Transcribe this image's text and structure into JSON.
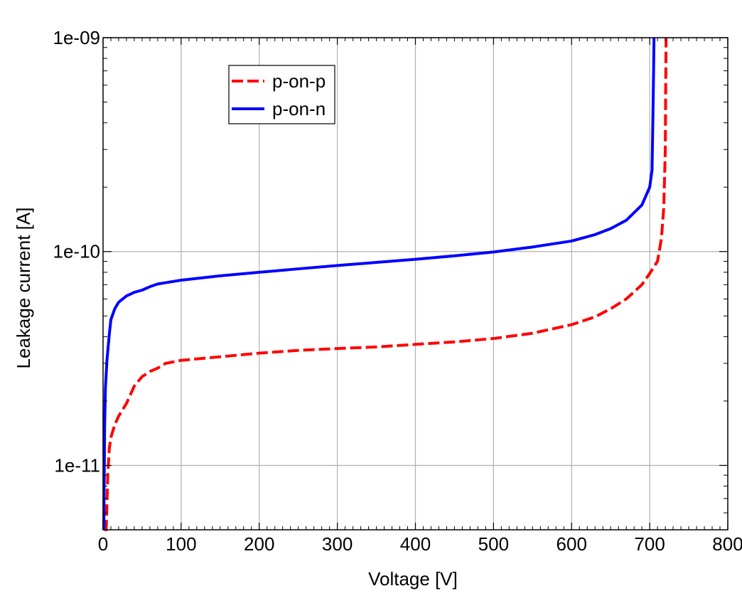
{
  "chart_data": {
    "type": "line",
    "xlabel": "Voltage [V]",
    "ylabel": "Leakage current [A]",
    "xlim": [
      0,
      800
    ],
    "ylim": [
      5e-12,
      1e-09
    ],
    "yscale": "log",
    "grid": true,
    "legend_position": "top-left",
    "x_ticks": [
      {
        "value": 0,
        "label": "0"
      },
      {
        "value": 100,
        "label": "100"
      },
      {
        "value": 200,
        "label": "200"
      },
      {
        "value": 300,
        "label": "300"
      },
      {
        "value": 400,
        "label": "400"
      },
      {
        "value": 500,
        "label": "500"
      },
      {
        "value": 600,
        "label": "600"
      },
      {
        "value": 700,
        "label": "700"
      },
      {
        "value": 800,
        "label": "800"
      }
    ],
    "y_ticks": [
      {
        "value": 1e-11,
        "label": "1e-11"
      },
      {
        "value": 1e-10,
        "label": "1e-10"
      },
      {
        "value": 1e-09,
        "label": "1e-09"
      }
    ],
    "series": [
      {
        "name": "p-on-p",
        "color": "#ff0000",
        "dash": "dashed",
        "points": [
          [
            2,
            5e-12
          ],
          [
            4,
            5e-12
          ],
          [
            5,
            6.5e-12
          ],
          [
            6,
            9e-12
          ],
          [
            8,
            1.2e-11
          ],
          [
            10,
            1.35e-11
          ],
          [
            15,
            1.55e-11
          ],
          [
            20,
            1.7e-11
          ],
          [
            30,
            1.95e-11
          ],
          [
            40,
            2.35e-11
          ],
          [
            50,
            2.6e-11
          ],
          [
            60,
            2.75e-11
          ],
          [
            70,
            2.85e-11
          ],
          [
            80,
            3e-11
          ],
          [
            100,
            3.1e-11
          ],
          [
            150,
            3.22e-11
          ],
          [
            200,
            3.35e-11
          ],
          [
            250,
            3.45e-11
          ],
          [
            300,
            3.52e-11
          ],
          [
            350,
            3.58e-11
          ],
          [
            400,
            3.68e-11
          ],
          [
            450,
            3.78e-11
          ],
          [
            500,
            3.92e-11
          ],
          [
            550,
            4.15e-11
          ],
          [
            600,
            4.55e-11
          ],
          [
            630,
            4.95e-11
          ],
          [
            650,
            5.4e-11
          ],
          [
            670,
            6e-11
          ],
          [
            690,
            7e-11
          ],
          [
            700,
            7.9e-11
          ],
          [
            710,
            9e-11
          ],
          [
            715,
            1.15e-10
          ],
          [
            718,
            1.6e-10
          ],
          [
            720,
            3e-10
          ],
          [
            720.5,
            6e-10
          ],
          [
            721,
            1e-09
          ]
        ]
      },
      {
        "name": "p-on-n",
        "color": "#0000ff",
        "dash": "solid",
        "points": [
          [
            1,
            5e-12
          ],
          [
            2,
            1.5e-11
          ],
          [
            3,
            2.3e-11
          ],
          [
            5,
            3.1e-11
          ],
          [
            8,
            4.1e-11
          ],
          [
            10,
            4.8e-11
          ],
          [
            15,
            5.4e-11
          ],
          [
            20,
            5.8e-11
          ],
          [
            30,
            6.2e-11
          ],
          [
            40,
            6.45e-11
          ],
          [
            50,
            6.6e-11
          ],
          [
            60,
            6.85e-11
          ],
          [
            70,
            7.05e-11
          ],
          [
            80,
            7.15e-11
          ],
          [
            100,
            7.35e-11
          ],
          [
            150,
            7.7e-11
          ],
          [
            200,
            8e-11
          ],
          [
            250,
            8.3e-11
          ],
          [
            300,
            8.6e-11
          ],
          [
            350,
            8.9e-11
          ],
          [
            400,
            9.2e-11
          ],
          [
            450,
            9.55e-11
          ],
          [
            500,
            9.95e-11
          ],
          [
            550,
            1.05e-10
          ],
          [
            600,
            1.12e-10
          ],
          [
            630,
            1.2e-10
          ],
          [
            650,
            1.28e-10
          ],
          [
            670,
            1.4e-10
          ],
          [
            690,
            1.65e-10
          ],
          [
            700,
            2e-10
          ],
          [
            703,
            2.4e-10
          ],
          [
            704,
            4e-10
          ],
          [
            705,
            7e-10
          ],
          [
            705.5,
            1e-09
          ]
        ]
      }
    ]
  }
}
